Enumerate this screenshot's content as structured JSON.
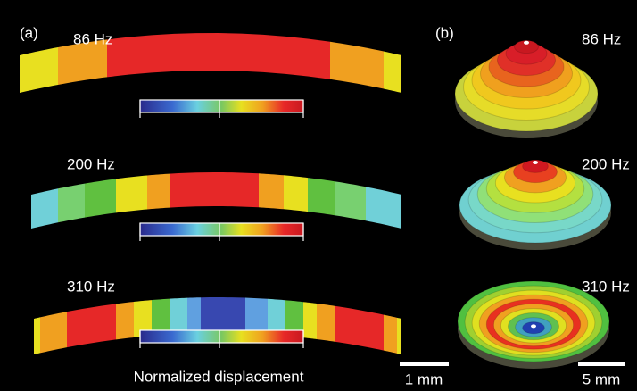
{
  "panel_a": {
    "label": "(a)",
    "modes": [
      "86 Hz",
      "200 Hz",
      "310 Hz"
    ],
    "colorbar_label": "Normalized displacement",
    "scale_bar": "1 mm"
  },
  "panel_b": {
    "label": "(b)",
    "modes": [
      "86 Hz",
      "200 Hz",
      "310 Hz"
    ],
    "scale_bar": "5 mm"
  }
}
